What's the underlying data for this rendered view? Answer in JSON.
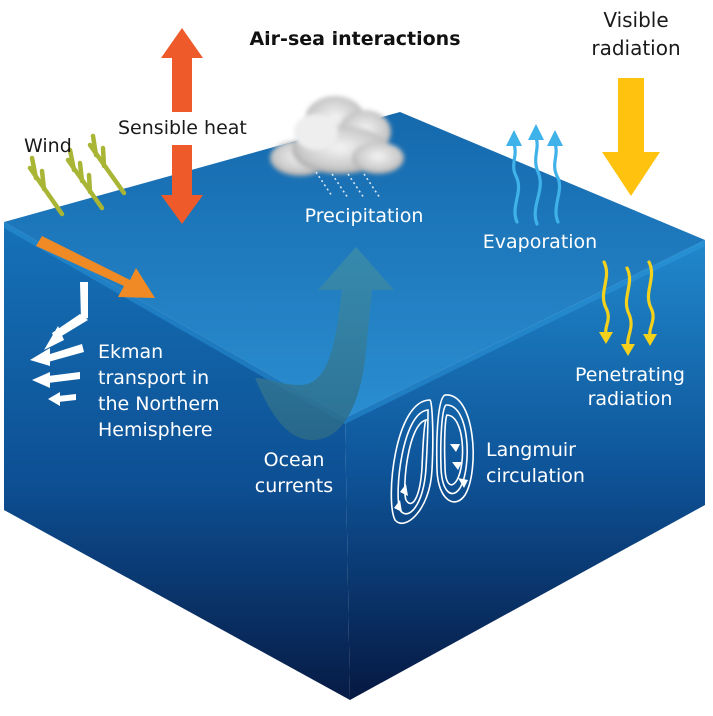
{
  "title": "Air-sea interactions",
  "labels": {
    "visible_radiation_line1": "Visible",
    "visible_radiation_line2": "radiation",
    "sensible_heat": "Sensible heat",
    "wind": "Wind",
    "precipitation": "Precipitation",
    "evaporation": "Evaporation",
    "penetrating_line1": "Penetrating",
    "penetrating_line2": "radiation",
    "ekman_line1": "Ekman",
    "ekman_line2": "transport in",
    "ekman_line3": "the Northern",
    "ekman_line4": "Hemisphere",
    "ocean_line1": "Ocean",
    "ocean_line2": "currents",
    "langmuir_line1": "Langmuir",
    "langmuir_line2": "circulation"
  },
  "colors": {
    "ocean_top": "#1a78bb",
    "ocean_left": "#0f5fa6",
    "ocean_right": "#0c5497",
    "ocean_deep": "#0a1f4a",
    "sensible_heat_arrow": "#ef5a2a",
    "wind_arrow": "#f08a24",
    "wind_barb": "#a8b535",
    "visible_radiation_arrow": "#ffc20e",
    "penetrating_radiation": "#f4d21c",
    "evaporation": "#3fb2ea",
    "current_white": "#ffffff"
  },
  "icons": {
    "cloud": "cloud-icon",
    "rain": "rain-icon"
  }
}
